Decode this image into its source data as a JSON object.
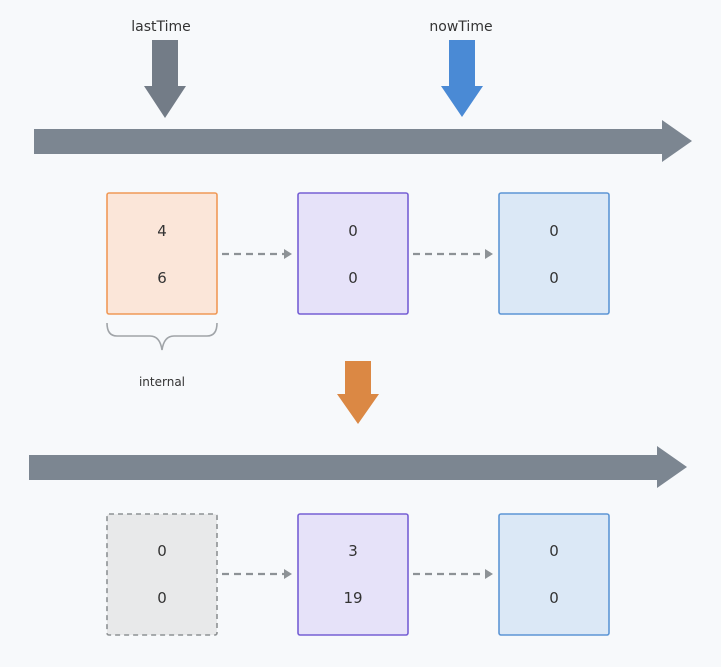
{
  "markers": {
    "last_time": {
      "label": "lastTime",
      "color": "#737c87"
    },
    "now_time": {
      "label": "nowTime",
      "color": "#4a8ad5"
    }
  },
  "transition_arrow_color": "#db8844",
  "timeline_color": "#7c8691",
  "brace_label": "internal",
  "before": {
    "boxes": [
      {
        "values": [
          "4",
          "6"
        ],
        "fill": "#fbe6d9",
        "stroke": "#f09957",
        "dashed": false
      },
      {
        "values": [
          "0",
          "0"
        ],
        "fill": "#e6e2f9",
        "stroke": "#7660d4",
        "dashed": false
      },
      {
        "values": [
          "0",
          "0"
        ],
        "fill": "#dbe8f6",
        "stroke": "#5d96d5",
        "dashed": false
      }
    ]
  },
  "after": {
    "boxes": [
      {
        "values": [
          "0",
          "0"
        ],
        "fill": "#e8e9ea",
        "stroke": "#8e9294",
        "dashed": true
      },
      {
        "values": [
          "3",
          "19"
        ],
        "fill": "#e6e2f9",
        "stroke": "#7660d4",
        "dashed": false
      },
      {
        "values": [
          "0",
          "0"
        ],
        "fill": "#dbe8f6",
        "stroke": "#5d96d5",
        "dashed": false
      }
    ]
  }
}
